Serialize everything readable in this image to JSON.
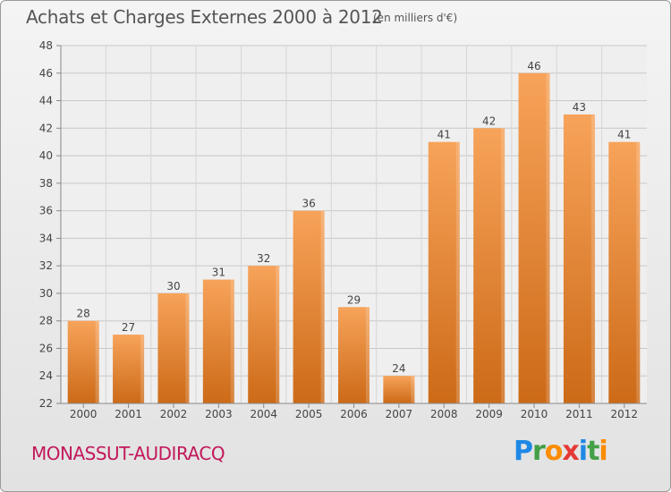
{
  "header": {
    "title": "Achats et Charges Externes 2000 à 2012",
    "unit": "(en milliers d'€)"
  },
  "footer": {
    "commune": "MONASSUT-AUDIRACQ",
    "brand": [
      {
        "text": "P",
        "color": "#1e88e5"
      },
      {
        "text": "r",
        "color": "#43a047"
      },
      {
        "text": "o",
        "color": "#fb8c00"
      },
      {
        "text": "x",
        "color": "#e53935"
      },
      {
        "text": "i",
        "color": "#1e88e5"
      },
      {
        "text": "t",
        "color": "#43a047"
      },
      {
        "text": "i",
        "color": "#fb8c00"
      }
    ]
  },
  "chart_data": {
    "type": "bar",
    "title": "Achats et Charges Externes 2000 à 2012",
    "subtitle": "(en milliers d'€)",
    "categories": [
      "2000",
      "2001",
      "2002",
      "2003",
      "2004",
      "2005",
      "2006",
      "2007",
      "2008",
      "2009",
      "2010",
      "2011",
      "2012"
    ],
    "values": [
      28,
      27,
      30,
      31,
      32,
      36,
      29,
      24,
      41,
      42,
      46,
      43,
      41
    ],
    "ylim": [
      22,
      48
    ],
    "yticks": [
      22,
      24,
      26,
      28,
      30,
      32,
      34,
      36,
      38,
      40,
      42,
      44,
      46,
      48
    ],
    "grid": true,
    "bar_color_light": "#f7a35a",
    "bar_color_dark": "#cc6a17",
    "legend": "none"
  }
}
